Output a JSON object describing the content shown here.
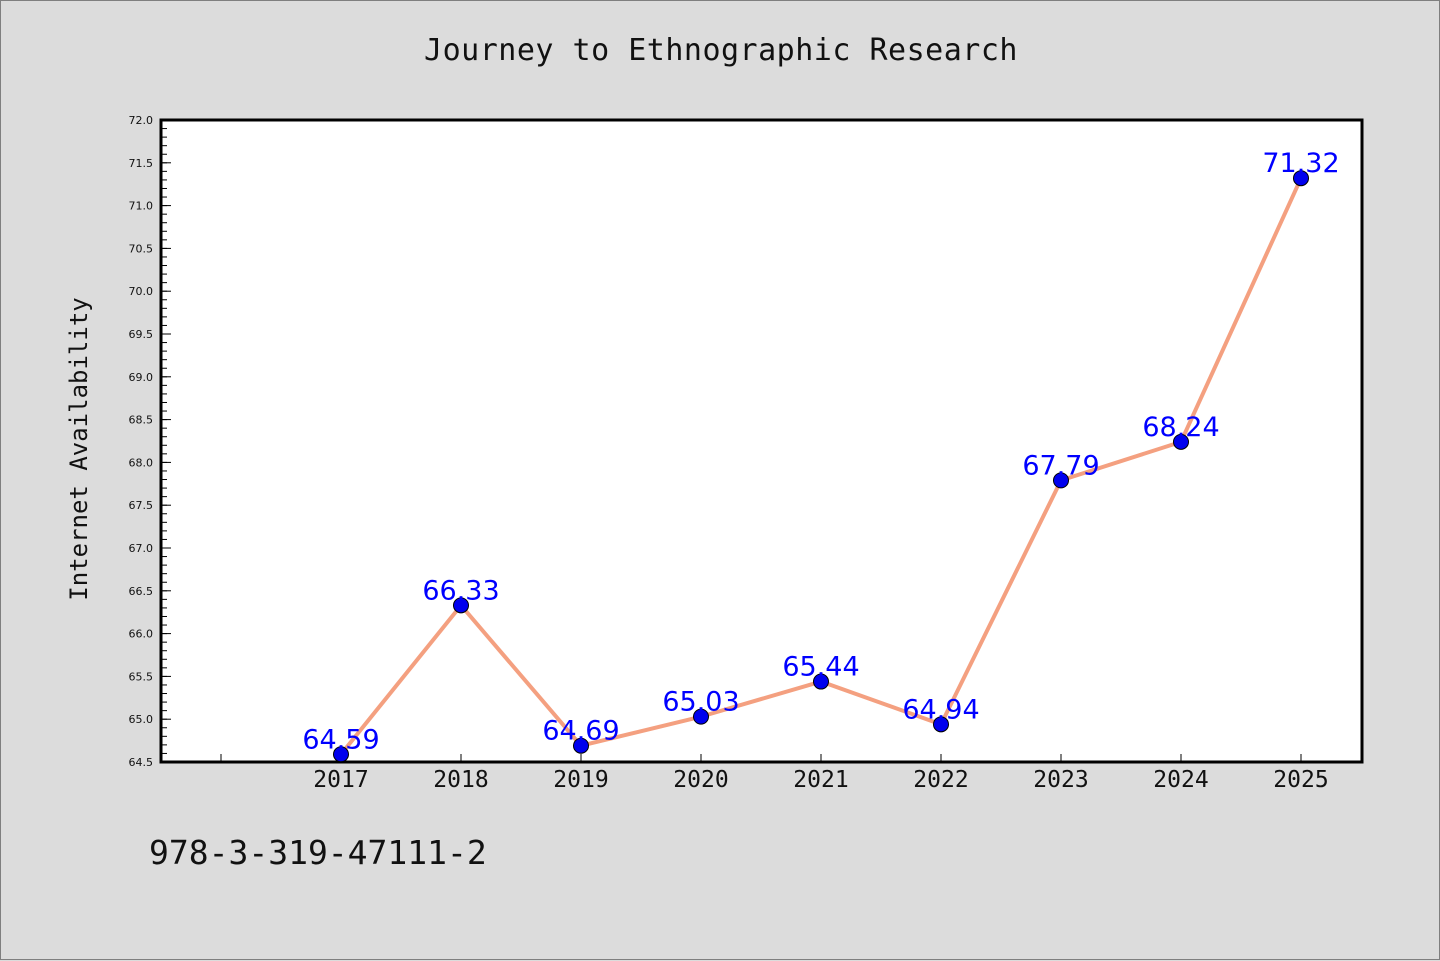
{
  "chart_data": {
    "type": "line",
    "title": "Journey to Ethnographic Research",
    "xlabel": "",
    "ylabel": "Internet Availability",
    "categories": [
      "2017",
      "2018",
      "2019",
      "2020",
      "2021",
      "2022",
      "2023",
      "2024",
      "2025"
    ],
    "series": [
      {
        "values": [
          64.59,
          66.33,
          64.69,
          65.03,
          65.44,
          64.94,
          67.79,
          68.24,
          71.32
        ],
        "data_labels": [
          "64.59",
          "66.33",
          "64.69",
          "65.03",
          "65.44",
          "64.94",
          "67.79",
          "68.24",
          "71.32"
        ]
      }
    ],
    "ylim": [
      64.5,
      72.0
    ],
    "ytick_labels": [
      "64.5",
      "65.0",
      "65.5",
      "66.0",
      "66.5",
      "67.0",
      "67.5",
      "68.0",
      "68.5",
      "69.0",
      "69.5",
      "70.0",
      "70.5",
      "71.0",
      "71.5",
      "72.0"
    ],
    "grid": false,
    "colors": {
      "line": "#f4a080",
      "marker": "#0000ee",
      "data_label": "#0000ff",
      "background": "#dcdcdc",
      "plot_background": "#ffffff"
    }
  },
  "footer": {
    "isbn": "978-3-319-47111-2"
  }
}
